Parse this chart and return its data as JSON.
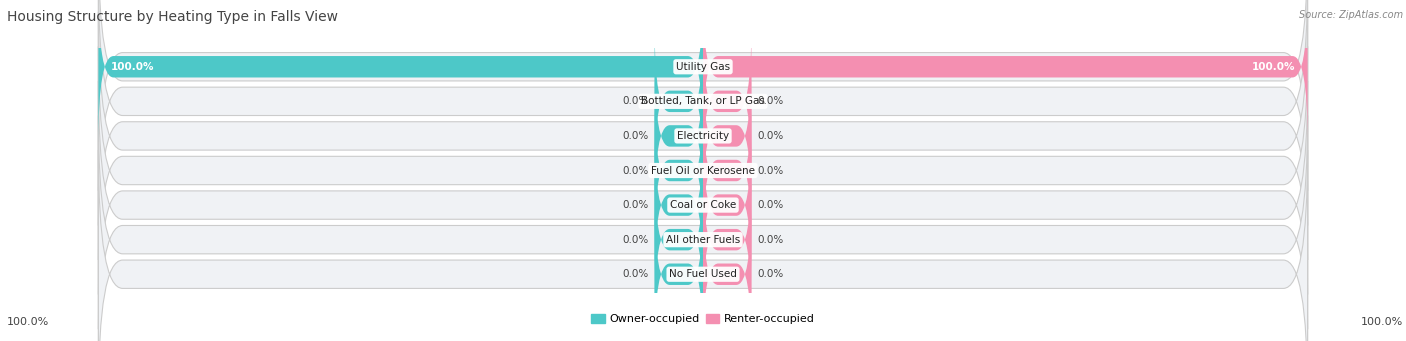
{
  "title": "Housing Structure by Heating Type in Falls View",
  "source": "Source: ZipAtlas.com",
  "categories": [
    "Utility Gas",
    "Bottled, Tank, or LP Gas",
    "Electricity",
    "Fuel Oil or Kerosene",
    "Coal or Coke",
    "All other Fuels",
    "No Fuel Used"
  ],
  "owner_values": [
    100.0,
    0.0,
    0.0,
    0.0,
    0.0,
    0.0,
    0.0
  ],
  "renter_values": [
    100.0,
    0.0,
    0.0,
    0.0,
    0.0,
    0.0,
    0.0
  ],
  "owner_color": "#4DC8C8",
  "renter_color": "#F48FB1",
  "row_bg_color": "#EBEBEB",
  "title_fontsize": 10,
  "label_fontsize": 7.5,
  "value_fontsize": 7.5,
  "legend_fontsize": 8,
  "bar_height": 0.62,
  "zero_stub": 8,
  "xlim_left": -100,
  "xlim_right": 100
}
